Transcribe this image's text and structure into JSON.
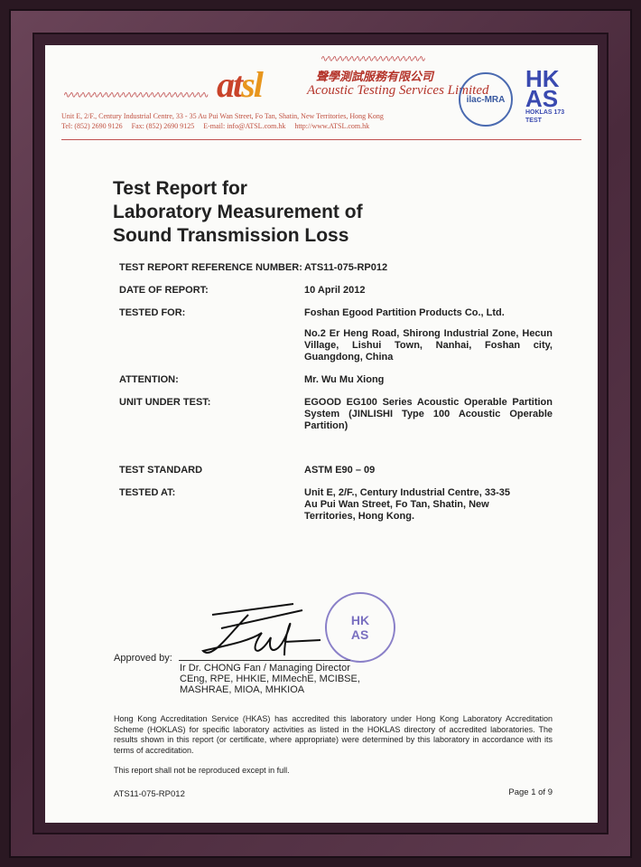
{
  "letterhead": {
    "logo": "atsl",
    "company_cn": "聲學測試服務有限公司",
    "company_en": "Acoustic Testing Services Limited",
    "address": "Unit E, 2/F., Century Industrial Centre, 33 - 35 Au Pui Wan Street, Fo Tan, Shatin, New Territories, Hong Kong",
    "contact": "Tel: (852) 2690 9126     Fax: (852) 2690 9125     E-mail: info@ATSL.com.hk     http://www.ATSL.com.hk",
    "ilac": "ilac-MRA",
    "hkas": "HKAS",
    "hoklas": "HOKLAS 173 TEST"
  },
  "title": [
    "Test Report for",
    "Laboratory Measurement of",
    "Sound Transmission Loss"
  ],
  "fields": [
    {
      "label": "TEST REPORT REFERENCE NUMBER:",
      "value": "ATS11-075-RP012"
    },
    {
      "label": "DATE OF REPORT:",
      "value": "10 April 2012"
    },
    {
      "label": "TESTED FOR:",
      "value": "Foshan Egood Partition Products Co., Ltd."
    },
    {
      "label": "",
      "value": "No.2 Er Heng Road, Shirong Industrial Zone, Hecun Village, Lishui Town, Nanhai, Foshan city, Guangdong, China"
    },
    {
      "label": "ATTENTION:",
      "value": "Mr. Wu Mu Xiong"
    },
    {
      "label": "UNIT UNDER TEST:",
      "value": "EGOOD EG100 Series Acoustic Operable Partition System (JINLISHI Type 100 Acoustic Operable Partition)"
    },
    {
      "label": "TEST STANDARD",
      "value": "ASTM E90 – 09"
    },
    {
      "label": "TESTED AT:",
      "value": "Unit E, 2/F., Century Industrial Centre, 33-35 Au Pui Wan Street, Fo Tan, Shatin, New Territories, Hong Kong."
    }
  ],
  "approval": {
    "label": "Approved by:",
    "stamp": "Acoustic Testing Services Limited",
    "name": "Ir Dr. CHONG Fan / Managing Director",
    "quals1": "CEng, RPE, HHKIE, MIMechE, MCIBSE,",
    "quals2": "MASHRAE, MIOA, MHKIOA"
  },
  "accreditation": "Hong Kong Accreditation Service (HKAS) has accredited this laboratory under Hong Kong Laboratory Accreditation Scheme (HOKLAS) for specific laboratory activities as listed in the HOKLAS directory of accredited laboratories. The results shown in this report (or certificate, where appropriate) were determined by this laboratory in accordance with its terms of accreditation.",
  "reproduction": "This report shall not be reproduced except in full.",
  "footer": {
    "ref": "ATS11-075-RP012",
    "page": "Page 1 of 9"
  }
}
